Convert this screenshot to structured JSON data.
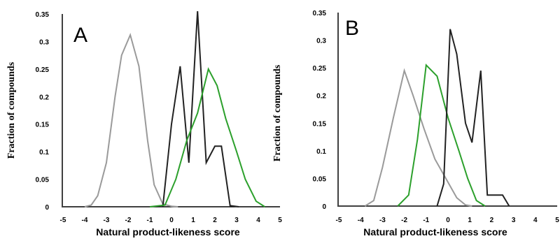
{
  "chart_data": [
    {
      "panel": "A",
      "type": "line",
      "xlabel": "Natural product-likeness score",
      "ylabel": "Fraction of  compounds",
      "xlim": [
        -5,
        5
      ],
      "ylim": [
        0,
        0.35
      ],
      "x_ticks": [
        "-5",
        "-4",
        "-3",
        "-2",
        "-1",
        "0",
        "1",
        "2",
        "3",
        "4",
        "5"
      ],
      "y_ticks": [
        "0",
        "0.05",
        "0.1",
        "0.15",
        "0.2",
        "0.25",
        "0.3",
        "0.35"
      ],
      "grid": false,
      "legend": "none",
      "series": [
        {
          "color": "#9a9a9a",
          "x": [
            -4,
            -3.7,
            -3.4,
            -3.0,
            -2.6,
            -2.3,
            -1.9,
            -1.5,
            -1.1,
            -0.8,
            -0.4,
            0,
            0.3
          ],
          "y": [
            0,
            0.003,
            0.02,
            0.08,
            0.2,
            0.275,
            0.312,
            0.255,
            0.12,
            0.04,
            0.005,
            0.001,
            0
          ]
        },
        {
          "color": "#222222",
          "x": [
            -0.4,
            0,
            0.4,
            0.8,
            1.2,
            1.6,
            2.0,
            2.3,
            2.7,
            3.1
          ],
          "y": [
            0,
            0.15,
            0.255,
            0.08,
            0.355,
            0.08,
            0.11,
            0.11,
            0.002,
            0
          ],
          "_note_x_fixed_order": true
        },
        {
          "color": "#2ca02c",
          "x": [
            -1,
            -0.3,
            0.2,
            0.7,
            1.2,
            1.7,
            2.1,
            2.5,
            3.0,
            3.4,
            3.9,
            4.3
          ],
          "y": [
            0,
            0.003,
            0.05,
            0.12,
            0.17,
            0.25,
            0.22,
            0.16,
            0.1,
            0.05,
            0.01,
            0
          ]
        }
      ]
    },
    {
      "panel": "B",
      "type": "line",
      "xlabel": "Natural product-likeness score",
      "ylabel": "Fraction of  compounds",
      "xlim": [
        -5,
        5
      ],
      "ylim": [
        0,
        0.35
      ],
      "x_ticks": [
        "-5",
        "-4",
        "-3",
        "-2",
        "-1",
        "0",
        "1",
        "2",
        "3",
        "4",
        "5"
      ],
      "y_ticks": [
        "0",
        "0.05",
        "0.1",
        "0.15",
        "0.2",
        "0.25",
        "0.3",
        "0.35"
      ],
      "grid": false,
      "legend": "none",
      "series": [
        {
          "color": "#9a9a9a",
          "x": [
            -3.8,
            -3.4,
            -3.0,
            -2.5,
            -2.0,
            -1.6,
            -1.1,
            -0.6,
            -0.1,
            0.4,
            0.8,
            1.1
          ],
          "y": [
            0,
            0.01,
            0.07,
            0.16,
            0.245,
            0.2,
            0.14,
            0.085,
            0.05,
            0.015,
            0.002,
            0
          ]
        },
        {
          "color": "#2ca02c",
          "x": [
            -2.3,
            -1.8,
            -1.4,
            -1.0,
            -0.5,
            0,
            0.5,
            0.9,
            1.3,
            1.7
          ],
          "y": [
            0,
            0.02,
            0.12,
            0.255,
            0.235,
            0.16,
            0.1,
            0.05,
            0.01,
            0
          ],
          "_note": "shape"
        },
        {
          "color": "#222222",
          "x": [
            -0.5,
            -0.2,
            0.1,
            0.4,
            0.8,
            1.1,
            1.5,
            1.8,
            2.1,
            2.5,
            2.8
          ],
          "y": [
            0,
            0.04,
            0.32,
            0.275,
            0.15,
            0.115,
            0.245,
            0.02,
            0.02,
            0.02,
            0
          ]
        }
      ]
    }
  ]
}
